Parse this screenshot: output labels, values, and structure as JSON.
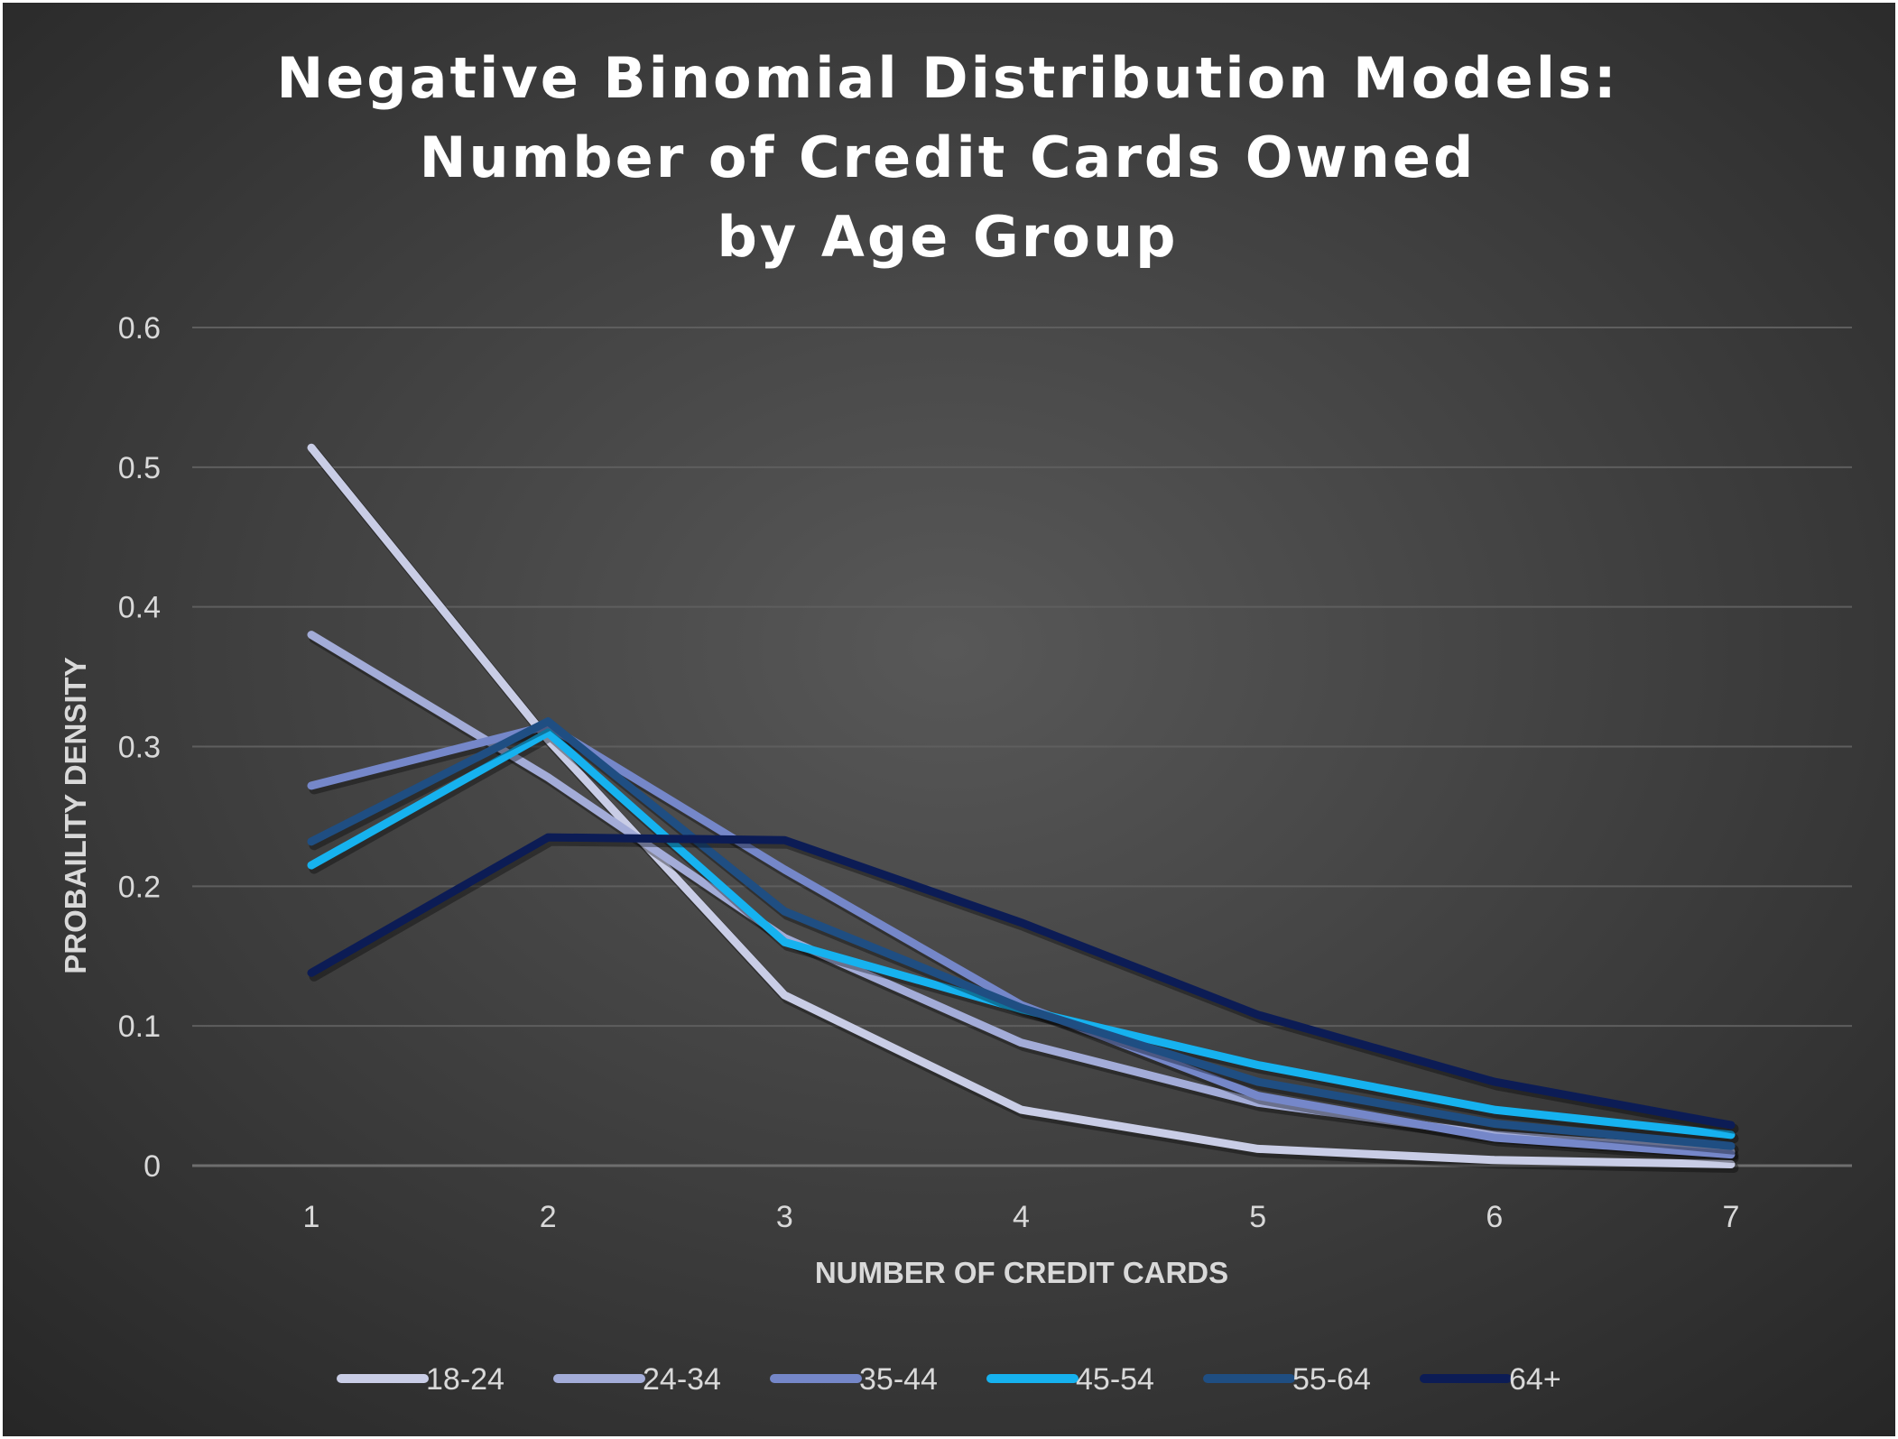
{
  "chart_data": {
    "type": "line",
    "title_lines": [
      "Negative Binomial Distribution Models:",
      "Number of Credit Cards Owned",
      "by Age Group"
    ],
    "xlabel": "NUMBER OF CREDIT CARDS",
    "ylabel": "PROBAILITY  DENSITY",
    "x": [
      1,
      2,
      3,
      4,
      5,
      6,
      7
    ],
    "y_ticks": [
      "0",
      "0.1",
      "0.2",
      "0.3",
      "0.4",
      "0.5",
      "0.6"
    ],
    "ylim": [
      0,
      0.6
    ],
    "grid": true,
    "legend_position": "bottom",
    "background": "#3a3a3a",
    "series": [
      {
        "name": "18-24",
        "color": "#c9cde6",
        "values": [
          0.514,
          0.305,
          0.122,
          0.04,
          0.012,
          0.004,
          0.001
        ]
      },
      {
        "name": "24-34",
        "color": "#a3acd8",
        "values": [
          0.38,
          0.278,
          0.163,
          0.088,
          0.045,
          0.022,
          0.01
        ]
      },
      {
        "name": "35-44",
        "color": "#7587c9",
        "values": [
          0.272,
          0.315,
          0.212,
          0.115,
          0.05,
          0.02,
          0.008
        ]
      },
      {
        "name": "45-54",
        "color": "#16b2ef",
        "values": [
          0.215,
          0.31,
          0.16,
          0.112,
          0.072,
          0.04,
          0.022
        ]
      },
      {
        "name": "55-64",
        "color": "#1f4e82",
        "values": [
          0.232,
          0.318,
          0.182,
          0.113,
          0.06,
          0.03,
          0.014
        ]
      },
      {
        "name": "64+",
        "color": "#0c1c55",
        "values": [
          0.138,
          0.235,
          0.233,
          0.174,
          0.108,
          0.06,
          0.029
        ]
      }
    ]
  }
}
